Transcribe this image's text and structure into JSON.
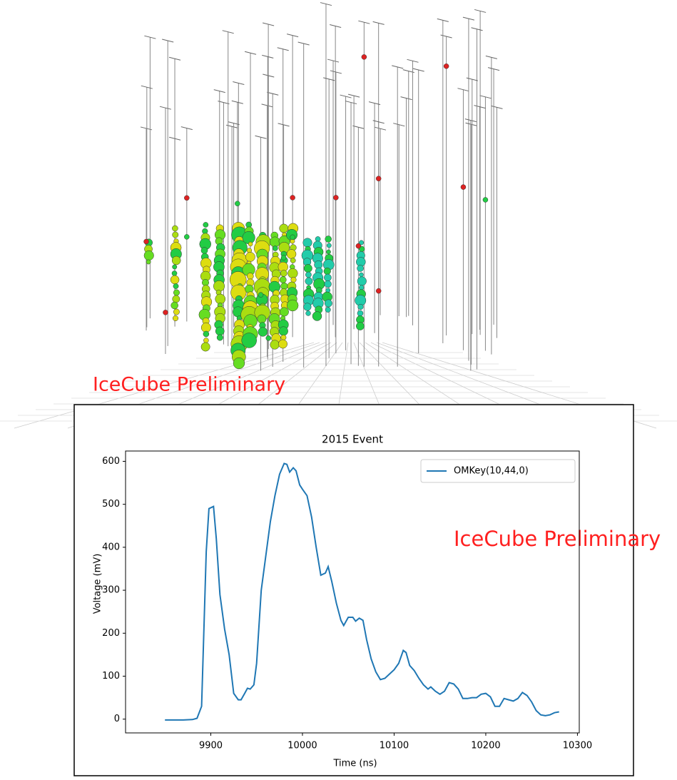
{
  "event_display": {
    "watermark": "IceCube Preliminary"
  },
  "chart_data": {
    "type": "line",
    "title": "2015 Event",
    "xlabel": "Time (ns)",
    "ylabel": "Voltage (mV)",
    "annotation": "IceCube Preliminary",
    "legend": "upper right",
    "grid": false,
    "x": [
      9850,
      9860,
      9870,
      9880,
      9885,
      9890,
      9895,
      9898,
      9903,
      9906,
      9910,
      9915,
      9920,
      9925,
      9930,
      9933,
      9937,
      9940,
      9943,
      9947,
      9950,
      9955,
      9960,
      9965,
      9970,
      9975,
      9980,
      9983,
      9986,
      9990,
      9993,
      9997,
      10000,
      10005,
      10010,
      10015,
      10020,
      10025,
      10028,
      10032,
      10037,
      10042,
      10045,
      10050,
      10055,
      10058,
      10062,
      10066,
      10070,
      10075,
      10080,
      10085,
      10090,
      10095,
      10100,
      10105,
      10110,
      10113,
      10117,
      10122,
      10127,
      10132,
      10137,
      10140,
      10145,
      10150,
      10155,
      10160,
      10165,
      10170,
      10175,
      10180,
      10185,
      10190,
      10195,
      10200,
      10205,
      10210,
      10215,
      10220,
      10225,
      10230,
      10235,
      10240,
      10245,
      10250,
      10255,
      10260,
      10265,
      10270,
      10275,
      10280
    ],
    "series": [
      {
        "name": "OMKey(10,44,0)",
        "color": "#1f77b4",
        "values": [
          -2,
          -2,
          -2,
          -1,
          2,
          30,
          390,
          490,
          495,
          420,
          290,
          210,
          150,
          60,
          45,
          45,
          60,
          72,
          70,
          80,
          130,
          300,
          380,
          460,
          520,
          570,
          595,
          593,
          575,
          585,
          578,
          545,
          535,
          520,
          470,
          400,
          335,
          340,
          355,
          320,
          270,
          230,
          218,
          237,
          237,
          228,
          235,
          230,
          185,
          140,
          110,
          92,
          95,
          105,
          115,
          130,
          160,
          155,
          125,
          113,
          95,
          80,
          70,
          75,
          65,
          58,
          65,
          85,
          82,
          70,
          48,
          48,
          50,
          50,
          58,
          60,
          52,
          30,
          30,
          48,
          45,
          42,
          48,
          62,
          55,
          40,
          20,
          10,
          8,
          10,
          15,
          17
        ]
      }
    ],
    "xlim": [
      9807,
      10302
    ],
    "xticks": [
      9900,
      10000,
      10100,
      10200,
      10300
    ],
    "ylim": [
      -32,
      624
    ],
    "yticks": [
      0,
      100,
      200,
      300,
      400,
      500,
      600
    ]
  }
}
